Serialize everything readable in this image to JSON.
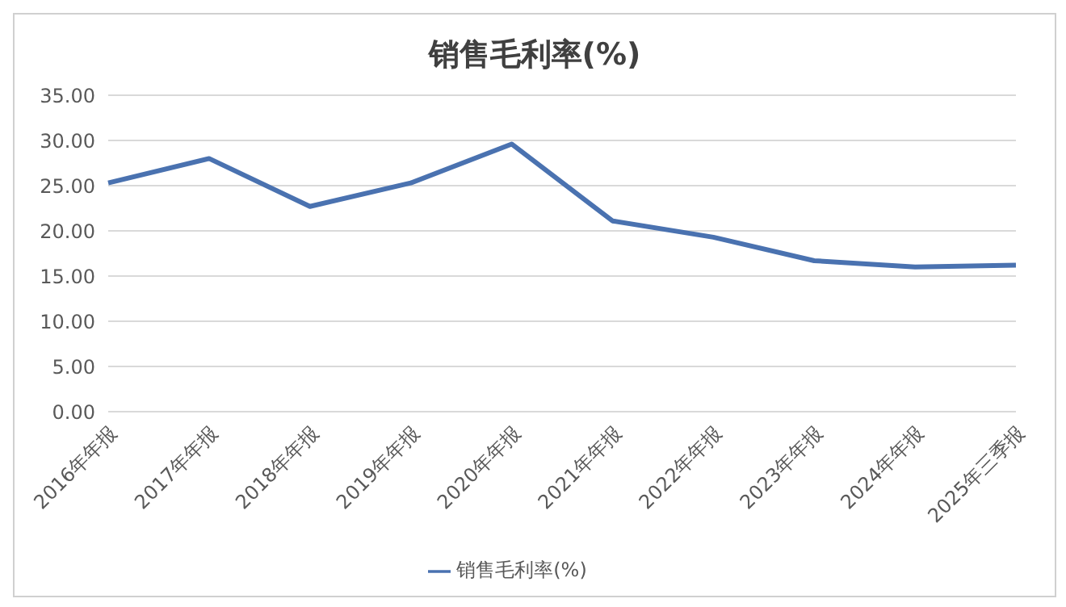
{
  "chart_data": {
    "type": "line",
    "title": "销售毛利率(%)",
    "categories": [
      "2016年年报",
      "2017年年报",
      "2018年年报",
      "2019年年报",
      "2020年年报",
      "2021年年报",
      "2022年年报",
      "2023年年报",
      "2024年年报",
      "2025年三季报"
    ],
    "series": [
      {
        "name": "销售毛利率(%)",
        "color": "#4a72b0",
        "values": [
          25.3,
          28.0,
          22.7,
          25.3,
          29.6,
          21.1,
          19.3,
          16.7,
          16.0,
          16.2
        ]
      }
    ],
    "ylim": [
      0,
      35
    ],
    "yticks": [
      {
        "value": 0,
        "label": "0.00"
      },
      {
        "value": 5,
        "label": "5.00"
      },
      {
        "value": 10,
        "label": "10.00"
      },
      {
        "value": 15,
        "label": "15.00"
      },
      {
        "value": 20,
        "label": "20.00"
      },
      {
        "value": 25,
        "label": "25.00"
      },
      {
        "value": 30,
        "label": "30.00"
      },
      {
        "value": 35,
        "label": "35.00"
      }
    ],
    "grid": "y",
    "legend": "bottom",
    "marker": "none",
    "line_style": "solid"
  }
}
